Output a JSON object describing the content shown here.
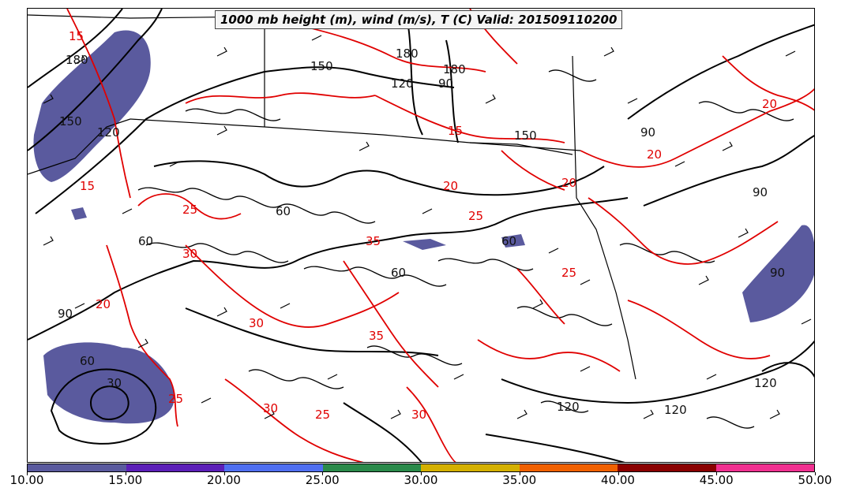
{
  "title": "1000 mb height (m), wind (m/s), T (C) Valid: 201509110200",
  "colorbar": {
    "ticks": [
      "10.00",
      "15.00",
      "20.00",
      "25.00",
      "30.00",
      "35.00",
      "40.00",
      "45.00",
      "50.00"
    ],
    "colors": [
      "#5a5a9e",
      "#5c1fb8",
      "#4f6ff0",
      "#2a8a4a",
      "#d4b000",
      "#f06000",
      "#8a0000",
      "#f03090"
    ]
  },
  "map": {
    "height_contour_color": "#000000",
    "temp_contour_color": "#e00000",
    "height_labels": [
      "180",
      "150",
      "120",
      "90",
      "60",
      "30",
      "150",
      "150",
      "180",
      "180",
      "60",
      "90",
      "60",
      "90",
      "120",
      "120",
      "120",
      "90",
      "60",
      "60",
      "90",
      "120"
    ],
    "temp_labels": [
      "15",
      "15",
      "20",
      "20",
      "25",
      "20",
      "25",
      "30",
      "35",
      "30",
      "25",
      "30",
      "35",
      "30",
      "25",
      "20",
      "20",
      "15",
      "25"
    ]
  }
}
